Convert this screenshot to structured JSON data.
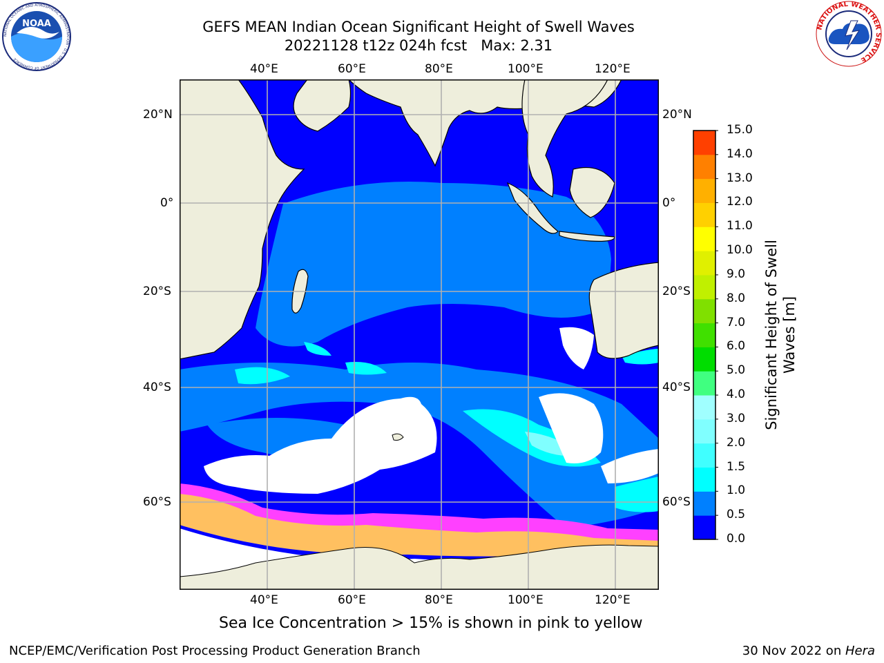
{
  "header": {
    "title_line1": "GEFS MEAN Indian Ocean Significant Height of Swell Waves",
    "title_line2": "20221128 t12z 024h fcst   Max: 2.31"
  },
  "logos": {
    "noaa_text": "NOAA",
    "noaa_ring_text": "NATIONAL OCEANIC AND ATMOSPHERIC ADMINISTRATION · U.S. DEPARTMENT OF COMMERCE",
    "nws_ring_text": "NATIONAL WEATHER SERVICE"
  },
  "map": {
    "lon_ticks": [
      "40°E",
      "60°E",
      "80°E",
      "100°E",
      "120°E"
    ],
    "lat_ticks": [
      "20°N",
      "0°",
      "20°S",
      "40°S",
      "60°S"
    ],
    "colors": {
      "land": "#eeeedc",
      "ocean_low": "#0000ff",
      "ocean_mid": "#0080ff",
      "ocean_high": "#00ffff",
      "ice_pink": "#ff40ff",
      "ice_yellow": "#ffc060"
    }
  },
  "colorbar": {
    "label_line1": "Significant Height of Swell",
    "label_line2": "Waves [m]",
    "ticks": [
      "0.0",
      "0.5",
      "1.0",
      "1.5",
      "2.0",
      "3.0",
      "4.0",
      "5.0",
      "6.0",
      "7.0",
      "8.0",
      "9.0",
      "10.0",
      "11.0",
      "12.0",
      "13.0",
      "14.0",
      "15.0"
    ],
    "colors": [
      "#0000ff",
      "#0080ff",
      "#00ffff",
      "#40ffff",
      "#80ffff",
      "#a0ffff",
      "#40ff80",
      "#00dd00",
      "#40e000",
      "#80e000",
      "#c0f000",
      "#e0f000",
      "#ffff00",
      "#ffd000",
      "#ffb000",
      "#ff8000",
      "#ff4000",
      "#ff0000"
    ]
  },
  "caption": "Sea Ice Concentration > 15% is shown in pink to yellow",
  "footer": {
    "left": "NCEP/EMC/Verification Post Processing Product Generation Branch",
    "right_prefix": "30 Nov 2022 on ",
    "right_host": "Hera"
  }
}
